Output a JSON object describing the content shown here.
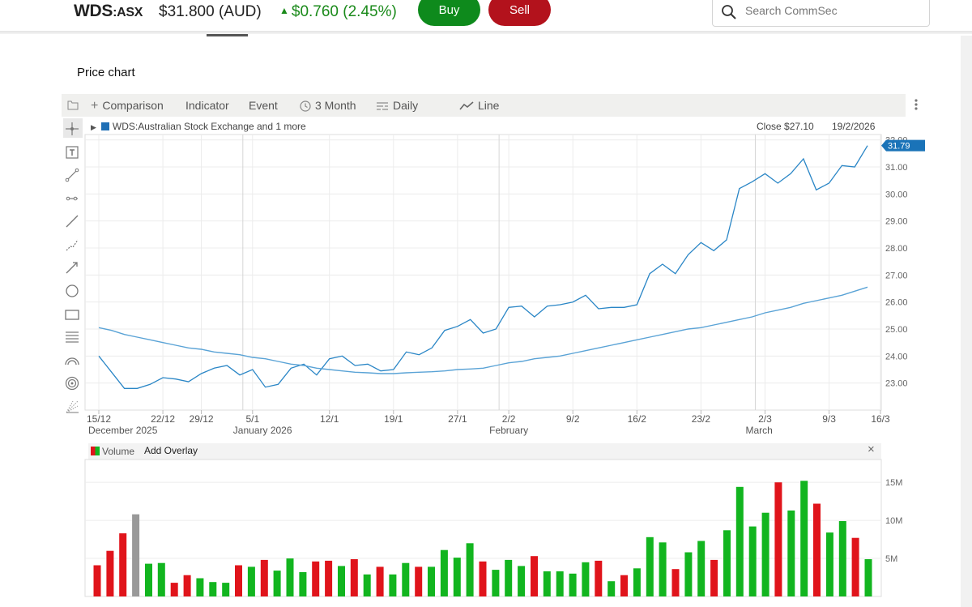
{
  "header": {
    "ticker_code": "WDS",
    "ticker_exchange": ":ASX",
    "price": "$31.800 (AUD)",
    "change": "$0.760 (2.45%)",
    "change_color": "#1a8a1a",
    "buy_label": "Buy",
    "sell_label": "Sell",
    "buy_color": "#0e8a1c",
    "sell_color": "#b3121c",
    "search_placeholder": "Search CommSec"
  },
  "section_title": "Price chart",
  "toolbar": {
    "comparison_label": "Comparison",
    "indicator_label": "Indicator",
    "event_label": "Event",
    "period_label": "3 Month",
    "interval_label": "Daily",
    "charttype_label": "Line"
  },
  "rail_icons": [
    "crosshair-icon",
    "text-tool-icon",
    "line-segment-icon",
    "horizontal-ray-icon",
    "trend-line-icon",
    "polyline-icon",
    "arrow-line-icon",
    "circle-icon",
    "rectangle-icon",
    "fibonacci-icon",
    "arc-icon",
    "spiral-icon",
    "gann-fan-icon"
  ],
  "legend": {
    "series_label": "WDS:Australian Stock Exchange and 1 more",
    "close_label": "Close $27.10",
    "date_label": "19/2/2026"
  },
  "volume_panel": {
    "volume_label": "Volume",
    "overlay_label": "Add Overlay",
    "close_symbol": "×"
  },
  "chart_data": [
    {
      "type": "line",
      "x_tick_labels": [
        "15/12",
        "22/12",
        "29/12",
        "5/1",
        "12/1",
        "19/1",
        "27/1",
        "2/2",
        "9/2",
        "16/2",
        "23/2",
        "2/3",
        "9/3",
        "16/3"
      ],
      "x_month_labels": [
        "December 2025",
        "January 2026",
        "February",
        "March"
      ],
      "y_tick_labels": [
        "23.00",
        "24.00",
        "25.00",
        "26.00",
        "27.00",
        "28.00",
        "29.00",
        "30.00",
        "31.00",
        "32.00"
      ],
      "ylim": [
        22.0,
        32.2
      ],
      "last_value_label": "31.79",
      "grid": true,
      "series": [
        {
          "color": "#2a86c6",
          "values": [
            24.0,
            23.4,
            22.8,
            22.8,
            22.95,
            23.2,
            23.15,
            23.05,
            23.35,
            23.55,
            23.65,
            23.3,
            23.5,
            22.85,
            22.95,
            23.55,
            23.7,
            23.3,
            23.9,
            24.0,
            23.65,
            23.7,
            23.45,
            23.5,
            24.15,
            24.05,
            24.3,
            24.95,
            25.1,
            25.35,
            24.85,
            25.0,
            25.8,
            25.85,
            25.45,
            25.85,
            25.9,
            26.0,
            26.25,
            25.75,
            25.8,
            25.8,
            25.9,
            27.05,
            27.4,
            27.05,
            27.75,
            28.2,
            27.9,
            28.3,
            30.2,
            30.45,
            30.75,
            30.4,
            30.75,
            31.3,
            30.15,
            30.4,
            31.05,
            31.0,
            31.79
          ]
        },
        {
          "color": "#5aa3d6",
          "values": [
            25.05,
            24.95,
            24.8,
            24.7,
            24.6,
            24.5,
            24.4,
            24.3,
            24.25,
            24.15,
            24.1,
            24.05,
            23.95,
            23.9,
            23.8,
            23.7,
            23.65,
            23.55,
            23.5,
            23.45,
            23.4,
            23.38,
            23.35,
            23.35,
            23.38,
            23.4,
            23.42,
            23.45,
            23.5,
            23.52,
            23.55,
            23.65,
            23.75,
            23.8,
            23.9,
            23.95,
            24.0,
            24.1,
            24.2,
            24.3,
            24.4,
            24.5,
            24.6,
            24.7,
            24.8,
            24.9,
            25.0,
            25.05,
            25.15,
            25.25,
            25.35,
            25.45,
            25.6,
            25.7,
            25.8,
            25.95,
            26.05,
            26.15,
            26.25,
            26.4,
            26.55
          ]
        }
      ]
    },
    {
      "type": "bar",
      "y_tick_labels": [
        "5M",
        "10M",
        "15M"
      ],
      "ylim": [
        0,
        18
      ],
      "colors": {
        "up": "#12b51f",
        "down": "#e0141b",
        "neutral": "#999999"
      },
      "values": [
        4.1,
        6.0,
        8.3,
        10.8,
        4.3,
        4.4,
        1.8,
        2.8,
        2.4,
        1.9,
        1.8,
        4.1,
        3.9,
        4.8,
        3.4,
        5.0,
        3.2,
        4.6,
        4.7,
        4.0,
        4.9,
        2.9,
        3.9,
        2.9,
        4.4,
        3.9,
        3.9,
        6.1,
        5.1,
        7.0,
        4.6,
        3.5,
        4.8,
        4.0,
        5.3,
        3.3,
        3.3,
        3.0,
        4.5,
        4.7,
        2.0,
        2.8,
        3.7,
        7.8,
        7.1,
        3.6,
        5.8,
        7.3,
        4.8,
        8.7,
        14.4,
        9.2,
        11.0,
        15.0,
        11.3,
        15.2,
        12.2,
        8.4,
        9.9,
        7.7,
        4.9
      ],
      "directions": [
        "down",
        "down",
        "down",
        "neutral",
        "up",
        "up",
        "down",
        "down",
        "up",
        "up",
        "up",
        "down",
        "up",
        "down",
        "up",
        "up",
        "up",
        "down",
        "down",
        "up",
        "down",
        "up",
        "down",
        "up",
        "up",
        "down",
        "up",
        "up",
        "up",
        "up",
        "down",
        "up",
        "up",
        "up",
        "down",
        "up",
        "up",
        "up",
        "up",
        "down",
        "up",
        "down",
        "up",
        "up",
        "up",
        "down",
        "up",
        "up",
        "down",
        "up",
        "up",
        "up",
        "up",
        "down",
        "up",
        "up",
        "down",
        "up",
        "up",
        "down",
        "up"
      ]
    }
  ]
}
